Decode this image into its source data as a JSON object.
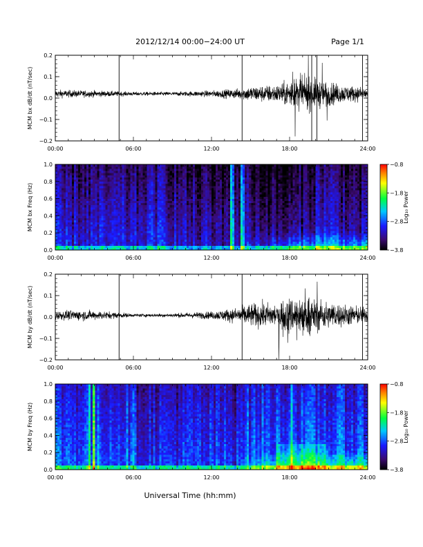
{
  "header": {
    "title": "2012/12/14  00:00−24:00 UT",
    "page": "Page 1/1"
  },
  "footer": {
    "xlabel": "Universal Time (hh:mm)"
  },
  "chart_data": [
    {
      "type": "line",
      "ylabel": "MCM bx dB/dt (nT/sec)",
      "xlim": [
        0,
        24
      ],
      "ylim": [
        -0.2,
        0.2
      ],
      "yticks": [
        -0.2,
        -0.1,
        0.0,
        0.1,
        0.2
      ],
      "ytick_labels": [
        "−0.2",
        "−0.1",
        "0.0",
        "0.1",
        "0.2"
      ],
      "xticks": [
        0,
        6,
        12,
        18,
        24
      ],
      "xtick_labels": [
        "00:00",
        "06:00",
        "12:00",
        "18:00",
        "24:00"
      ],
      "spikes_hours": [
        4.9,
        14.35,
        19.7,
        20.1,
        23.6
      ],
      "envelope": {
        "hours": [
          0,
          3,
          6,
          9,
          12,
          14,
          15,
          17,
          18,
          19,
          20,
          22,
          24
        ],
        "amplitude": [
          0.03,
          0.025,
          0.015,
          0.015,
          0.025,
          0.04,
          0.06,
          0.07,
          0.1,
          0.13,
          0.12,
          0.07,
          0.05
        ]
      }
    },
    {
      "type": "heatmap",
      "ylabel": "MCM bx Freq (Hz)",
      "xlim": [
        0,
        24
      ],
      "ylim": [
        0,
        1.0
      ],
      "yticks": [
        0,
        0.2,
        0.4,
        0.6,
        0.8,
        1.0
      ],
      "ytick_labels": [
        "0.0",
        "0.2",
        "0.4",
        "0.6",
        "0.8",
        "1.0"
      ],
      "xticks": [
        0,
        6,
        12,
        18,
        24
      ],
      "xtick_labels": [
        "00:00",
        "06:00",
        "12:00",
        "18:00",
        "24:00"
      ],
      "colorbar": {
        "label": "Log₁₀ Power",
        "range": [
          -3.8,
          -0.8
        ],
        "tick_labels": [
          "−0.8",
          "−1.8",
          "−2.8",
          "−3.8"
        ]
      },
      "bright_stripes_hours": [
        13.6,
        14.4
      ]
    },
    {
      "type": "line",
      "ylabel": "MCM by dB/dt (nT/sec)",
      "xlim": [
        0,
        24
      ],
      "ylim": [
        -0.2,
        0.2
      ],
      "yticks": [
        -0.2,
        -0.1,
        0.0,
        0.1,
        0.2
      ],
      "ytick_labels": [
        "−0.2",
        "−0.1",
        "0.0",
        "0.1",
        "0.2"
      ],
      "xticks": [
        0,
        6,
        12,
        18,
        24
      ],
      "xtick_labels": [
        "00:00",
        "06:00",
        "12:00",
        "18:00",
        "24:00"
      ],
      "spikes_hours": [
        4.9,
        14.35,
        23.6
      ],
      "envelope": {
        "hours": [
          0,
          2,
          4,
          6,
          9,
          12,
          14,
          15,
          17,
          18,
          19,
          20,
          22,
          24
        ],
        "amplitude": [
          0.035,
          0.04,
          0.03,
          0.012,
          0.015,
          0.03,
          0.06,
          0.09,
          0.1,
          0.14,
          0.15,
          0.12,
          0.09,
          0.06
        ]
      }
    },
    {
      "type": "heatmap",
      "ylabel": "MCM by Freq (Hz)",
      "xlim": [
        0,
        24
      ],
      "ylim": [
        0,
        1.0
      ],
      "yticks": [
        0,
        0.2,
        0.4,
        0.6,
        0.8,
        1.0
      ],
      "ytick_labels": [
        "0.0",
        "0.2",
        "0.4",
        "0.6",
        "0.8",
        "1.0"
      ],
      "xticks": [
        0,
        6,
        12,
        18,
        24
      ],
      "xtick_labels": [
        "00:00",
        "06:00",
        "12:00",
        "18:00",
        "24:00"
      ],
      "colorbar": {
        "label": "Log₁₀ Power",
        "range": [
          -3.8,
          -0.8
        ],
        "tick_labels": [
          "−0.8",
          "−1.8",
          "−2.8",
          "−3.8"
        ]
      },
      "bright_stripes_hours": [
        2.7,
        3.0,
        18.1
      ]
    }
  ]
}
